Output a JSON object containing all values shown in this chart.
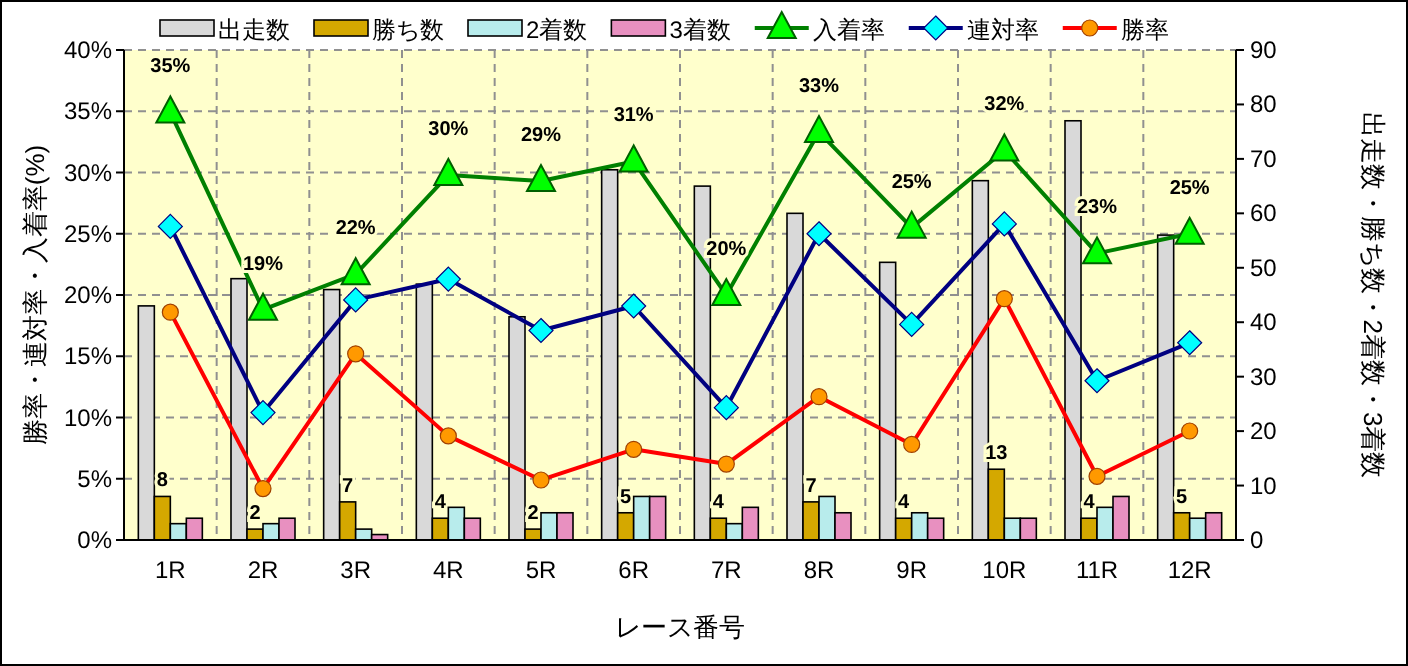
{
  "chart_data": {
    "type": "bar",
    "categories": [
      "1R",
      "2R",
      "3R",
      "4R",
      "5R",
      "6R",
      "7R",
      "8R",
      "9R",
      "10R",
      "11R",
      "12R"
    ],
    "xlabel": "レース番号",
    "ylabel": "勝率・連対率・入着率(%)",
    "y2label": "出走数・勝ち数・2着数・3着数",
    "ylim": [
      0,
      40
    ],
    "yticks": [
      {
        "value": 0,
        "label": "0%"
      },
      {
        "value": 5,
        "label": "5%"
      },
      {
        "value": 10,
        "label": "10%"
      },
      {
        "value": 15,
        "label": "15%"
      },
      {
        "value": 20,
        "label": "20%"
      },
      {
        "value": 25,
        "label": "25%"
      },
      {
        "value": 30,
        "label": "30%"
      },
      {
        "value": 35,
        "label": "35%"
      },
      {
        "value": 40,
        "label": "40%"
      }
    ],
    "y2lim": [
      0,
      90
    ],
    "y2ticks": [
      0,
      10,
      20,
      30,
      40,
      50,
      60,
      70,
      80,
      90
    ],
    "grid": true,
    "legend": "top",
    "series": [
      {
        "name": "出走数",
        "axis": "y2",
        "color": "#d9d9d9",
        "values": [
          43,
          48,
          46,
          47,
          41,
          68,
          65,
          60,
          51,
          66,
          77,
          56
        ]
      },
      {
        "name": "勝ち数",
        "axis": "y2",
        "color": "#d4a800",
        "values": [
          8,
          2,
          7,
          4,
          2,
          5,
          4,
          7,
          4,
          13,
          4,
          5
        ],
        "value_labels": [
          "8",
          "2",
          "7",
          "4",
          "2",
          "5",
          "4",
          "7",
          "4",
          "13",
          "4",
          "5"
        ]
      },
      {
        "name": "2着数",
        "axis": "y2",
        "color": "#b8ecec",
        "values": [
          3,
          3,
          2,
          6,
          5,
          8,
          3,
          8,
          5,
          4,
          6,
          4
        ]
      },
      {
        "name": "3着数",
        "axis": "y2",
        "color": "#e890c0",
        "values": [
          4,
          4,
          1,
          4,
          5,
          8,
          6,
          5,
          4,
          4,
          8,
          5
        ]
      },
      {
        "name": "入着率",
        "type": "line",
        "axis": "y",
        "color": "#008000",
        "marker": "triangle",
        "colors": [
          "#00ff00",
          "#00ff00",
          "#00ff00",
          "#00ff00",
          "#00ff00",
          "#00ff00",
          "#00ff00",
          "#00ff00",
          "#00ff00",
          "#00ff00",
          "#00ff00",
          "#00ff00"
        ],
        "values": [
          34.9,
          18.8,
          21.7,
          29.8,
          29.3,
          30.9,
          20.0,
          33.3,
          25.5,
          31.8,
          23.4,
          25.0
        ],
        "value_labels": [
          "35%",
          "19%",
          "22%",
          "30%",
          "29%",
          "31%",
          "20%",
          "33%",
          "25%",
          "32%",
          "23%",
          "25%"
        ]
      },
      {
        "name": "連対率",
        "type": "line",
        "axis": "y",
        "color": "#000080",
        "marker": "diamond",
        "colors": [
          "#00ffff",
          "#00ffff",
          "#00ffff",
          "#00ffff",
          "#00ffff",
          "#00ffff",
          "#00ffff",
          "#00ffff",
          "#00ffff",
          "#00ffff",
          "#00ffff",
          "#00ffff"
        ],
        "values": [
          25.6,
          10.4,
          19.6,
          21.3,
          17.1,
          19.1,
          10.8,
          25.0,
          17.6,
          25.8,
          13.0,
          16.1
        ]
      },
      {
        "name": "勝率",
        "type": "line",
        "axis": "y",
        "color": "#ff0000",
        "marker": "circle",
        "colors": [
          "#ff9900",
          "#ff9900",
          "#ff9900",
          "#ff9900",
          "#ff9900",
          "#ff9900",
          "#ff9900",
          "#ff9900",
          "#ff9900",
          "#ff9900",
          "#ff9900",
          "#ff9900"
        ],
        "values": [
          18.6,
          4.2,
          15.2,
          8.5,
          4.9,
          7.4,
          6.2,
          11.7,
          7.8,
          19.7,
          5.2,
          8.9
        ]
      }
    ]
  }
}
